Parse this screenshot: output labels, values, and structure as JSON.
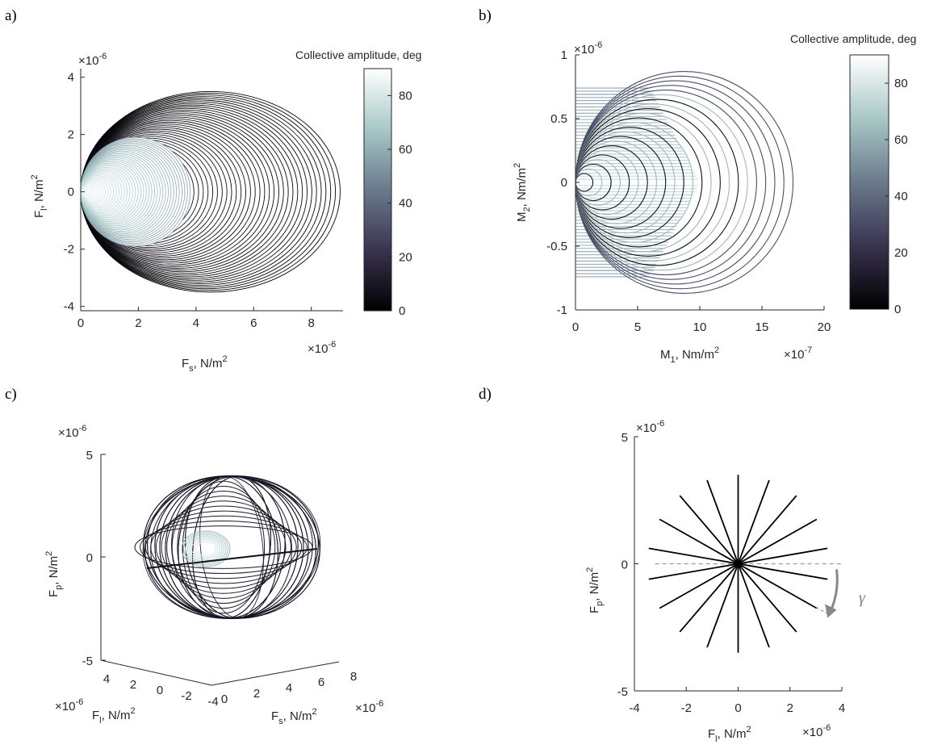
{
  "chart_data": [
    {
      "panel": "a)",
      "type": "line",
      "description_type": "concentric ellipse family",
      "xlabel": "F_s, N/m^2",
      "ylabel": "F_l, N/m^2",
      "x_exponent": "×10^-6",
      "y_exponent": "×10^-6",
      "xlim": [
        0,
        9.1
      ],
      "ylim": [
        -4.15,
        4.3
      ],
      "xticks": [
        "0",
        "2",
        "4",
        "6",
        "8"
      ],
      "yticks": [
        "-4",
        "-2",
        "0",
        "2",
        "4"
      ],
      "colorbar": {
        "label": "Collective amplitude, deg",
        "ticks": [
          "0",
          "20",
          "40",
          "60",
          "80"
        ],
        "range": [
          0,
          90
        ]
      },
      "series": [
        {
          "values": {
            "outer_ellipse": {
              "cx": 4.5,
              "cy": 0,
              "rx": 4.5,
              "ry": 3.5
            },
            "inner_ellipse": {
              "cx": 1.9,
              "cy": 0,
              "rx": 1.9,
              "ry": 1.9
            },
            "amplitude_range_deg": [
              0,
              90
            ]
          }
        }
      ]
    },
    {
      "panel": "b)",
      "type": "line",
      "description_type": "circle family",
      "xlabel": "M_1, Nm/m^2",
      "ylabel": "M_2, Nm/m^2",
      "x_exponent": "×10^-7",
      "y_exponent": "×10^-6",
      "xlim": [
        0,
        20
      ],
      "ylim": [
        -1,
        1
      ],
      "xticks": [
        "0",
        "5",
        "10",
        "15",
        "20"
      ],
      "yticks": [
        "-1",
        "-0.5",
        "0",
        "0.5",
        "1"
      ],
      "colorbar": {
        "label": "Collective amplitude, deg",
        "ticks": [
          "0",
          "20",
          "40",
          "60",
          "80"
        ],
        "range": [
          0,
          90
        ]
      },
      "series": [
        {
          "values": {
            "outer_radius_x": 17.5,
            "outer_radius_y": 0.87,
            "band_y": [
              -0.74,
              0.74
            ]
          }
        }
      ]
    },
    {
      "panel": "c)",
      "type": "line",
      "description_type": "3D orbit family",
      "xlabel": "F_s, N/m^2",
      "ylabel": "F_l, N/m^2",
      "zlabel": "F_p, N/m^2",
      "x_exponent": "×10^-6",
      "y_exponent": "×10^-6",
      "z_exponent": "×10^-6",
      "xticks": [
        "0",
        "2",
        "4",
        "6",
        "8"
      ],
      "yticks": [
        "4",
        "2",
        "0",
        "-2",
        "-4"
      ],
      "zticks": [
        "-5",
        "0",
        "5"
      ]
    },
    {
      "panel": "d)",
      "type": "line",
      "description_type": "radial lines",
      "xlabel": "F_l, N/m^2",
      "ylabel": "F_p, N/m^2",
      "x_exponent": "×10^-6",
      "y_exponent": "×10^-6",
      "xlim": [
        -4,
        4
      ],
      "ylim": [
        -5,
        5
      ],
      "xticks": [
        "-4",
        "-2",
        "0",
        "2",
        "4"
      ],
      "yticks": [
        "-5",
        "0",
        "5"
      ],
      "annotation": "γ",
      "series": [
        {
          "values": {
            "line_count": 18,
            "half_length": 3.5,
            "angle_step_deg": 20
          }
        }
      ]
    }
  ],
  "text": {
    "a_label": "a)",
    "b_label": "b)",
    "c_label": "c)",
    "d_label": "d)",
    "cb_title": "Collective amplitude, deg",
    "exp6": "×10",
    "m6": "-6",
    "m7": "-7",
    "a_xlab": "F",
    "a_xsub": "s",
    "a_ylab": "F",
    "a_ysub": "l",
    "unit_N": ", N/m",
    "unit_Nm": ", Nm/m",
    "sq": "2",
    "b_xlab": "M",
    "b_xsub": "1",
    "b_ylab": "M",
    "b_ysub": "2",
    "c_zlab": "F",
    "c_zsub": "p",
    "c_xlab": "F",
    "c_xsub": "s",
    "c_ylab": "F",
    "c_ysub": "l",
    "d_xlab": "F",
    "d_xsub": "l",
    "d_ylab": "F",
    "d_ysub": "p",
    "gamma": "γ"
  }
}
